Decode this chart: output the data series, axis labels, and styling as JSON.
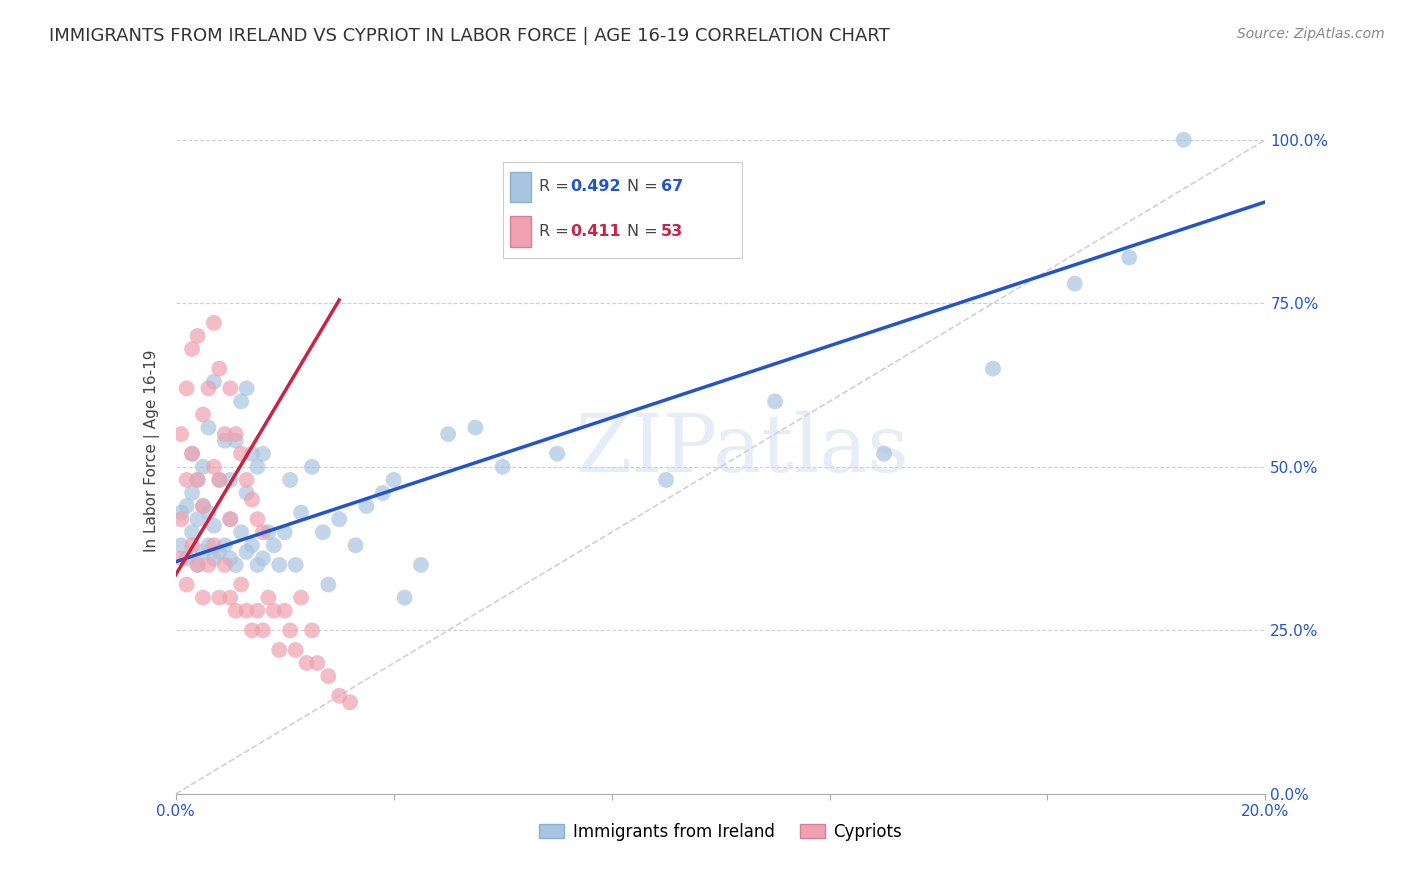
{
  "title": "IMMIGRANTS FROM IRELAND VS CYPRIOT IN LABOR FORCE | AGE 16-19 CORRELATION CHART",
  "source_text": "Source: ZipAtlas.com",
  "ylabel": "In Labor Force | Age 16-19",
  "xlim": [
    0.0,
    0.2
  ],
  "ylim": [
    0.0,
    1.05
  ],
  "yticks": [
    0.0,
    0.25,
    0.5,
    0.75,
    1.0
  ],
  "ytick_labels": [
    "0.0%",
    "25.0%",
    "50.0%",
    "75.0%",
    "100.0%"
  ],
  "xticks": [
    0.0,
    0.04,
    0.08,
    0.12,
    0.16,
    0.2
  ],
  "xtick_labels": [
    "0.0%",
    "",
    "",
    "",
    "",
    "20.0%"
  ],
  "ireland_R": 0.492,
  "ireland_N": 67,
  "cypriot_R": 0.411,
  "cypriot_N": 53,
  "ireland_color": "#a8c4e0",
  "cypriot_color": "#f0a0b0",
  "ireland_line_color": "#2255cc",
  "cypriot_line_color": "#cc2244",
  "diagonal_color": "#cccccc",
  "background_color": "#ffffff",
  "grid_color": "#d0d0d8",
  "legend_label_ireland": "Immigrants from Ireland",
  "legend_label_cypriot": "Cypriots",
  "watermark": "ZIPatlas",
  "ireland_line_x0": 0.0,
  "ireland_line_y0": 0.355,
  "ireland_line_x1": 0.2,
  "ireland_line_y1": 0.905,
  "cypriot_line_x0": 0.0,
  "cypriot_line_y0": 0.335,
  "cypriot_line_x1": 0.03,
  "cypriot_line_y1": 0.755,
  "ireland_x": [
    0.001,
    0.001,
    0.002,
    0.002,
    0.003,
    0.003,
    0.003,
    0.004,
    0.004,
    0.004,
    0.005,
    0.005,
    0.005,
    0.006,
    0.006,
    0.006,
    0.007,
    0.007,
    0.007,
    0.008,
    0.008,
    0.009,
    0.009,
    0.01,
    0.01,
    0.01,
    0.011,
    0.011,
    0.012,
    0.012,
    0.013,
    0.013,
    0.013,
    0.014,
    0.014,
    0.015,
    0.015,
    0.016,
    0.016,
    0.017,
    0.018,
    0.019,
    0.02,
    0.021,
    0.022,
    0.023,
    0.025,
    0.027,
    0.028,
    0.03,
    0.033,
    0.035,
    0.038,
    0.04,
    0.042,
    0.045,
    0.05,
    0.055,
    0.06,
    0.07,
    0.09,
    0.11,
    0.13,
    0.15,
    0.165,
    0.175,
    0.185
  ],
  "ireland_y": [
    0.38,
    0.43,
    0.36,
    0.44,
    0.4,
    0.46,
    0.52,
    0.35,
    0.42,
    0.48,
    0.37,
    0.44,
    0.5,
    0.38,
    0.43,
    0.56,
    0.36,
    0.41,
    0.63,
    0.37,
    0.48,
    0.38,
    0.54,
    0.36,
    0.42,
    0.48,
    0.35,
    0.54,
    0.4,
    0.6,
    0.37,
    0.46,
    0.62,
    0.38,
    0.52,
    0.35,
    0.5,
    0.36,
    0.52,
    0.4,
    0.38,
    0.35,
    0.4,
    0.48,
    0.35,
    0.43,
    0.5,
    0.4,
    0.32,
    0.42,
    0.38,
    0.44,
    0.46,
    0.48,
    0.3,
    0.35,
    0.55,
    0.56,
    0.5,
    0.52,
    0.48,
    0.6,
    0.52,
    0.65,
    0.78,
    0.82,
    1.0
  ],
  "cypriot_x": [
    0.001,
    0.001,
    0.001,
    0.002,
    0.002,
    0.002,
    0.003,
    0.003,
    0.003,
    0.004,
    0.004,
    0.004,
    0.005,
    0.005,
    0.005,
    0.006,
    0.006,
    0.007,
    0.007,
    0.007,
    0.008,
    0.008,
    0.008,
    0.009,
    0.009,
    0.01,
    0.01,
    0.01,
    0.011,
    0.011,
    0.012,
    0.012,
    0.013,
    0.013,
    0.014,
    0.014,
    0.015,
    0.015,
    0.016,
    0.016,
    0.017,
    0.018,
    0.019,
    0.02,
    0.021,
    0.022,
    0.023,
    0.024,
    0.025,
    0.026,
    0.028,
    0.03,
    0.032
  ],
  "cypriot_y": [
    0.36,
    0.42,
    0.55,
    0.32,
    0.48,
    0.62,
    0.38,
    0.52,
    0.68,
    0.35,
    0.48,
    0.7,
    0.3,
    0.44,
    0.58,
    0.35,
    0.62,
    0.38,
    0.5,
    0.72,
    0.3,
    0.48,
    0.65,
    0.35,
    0.55,
    0.3,
    0.42,
    0.62,
    0.28,
    0.55,
    0.32,
    0.52,
    0.28,
    0.48,
    0.25,
    0.45,
    0.28,
    0.42,
    0.25,
    0.4,
    0.3,
    0.28,
    0.22,
    0.28,
    0.25,
    0.22,
    0.3,
    0.2,
    0.25,
    0.2,
    0.18,
    0.15,
    0.14
  ]
}
